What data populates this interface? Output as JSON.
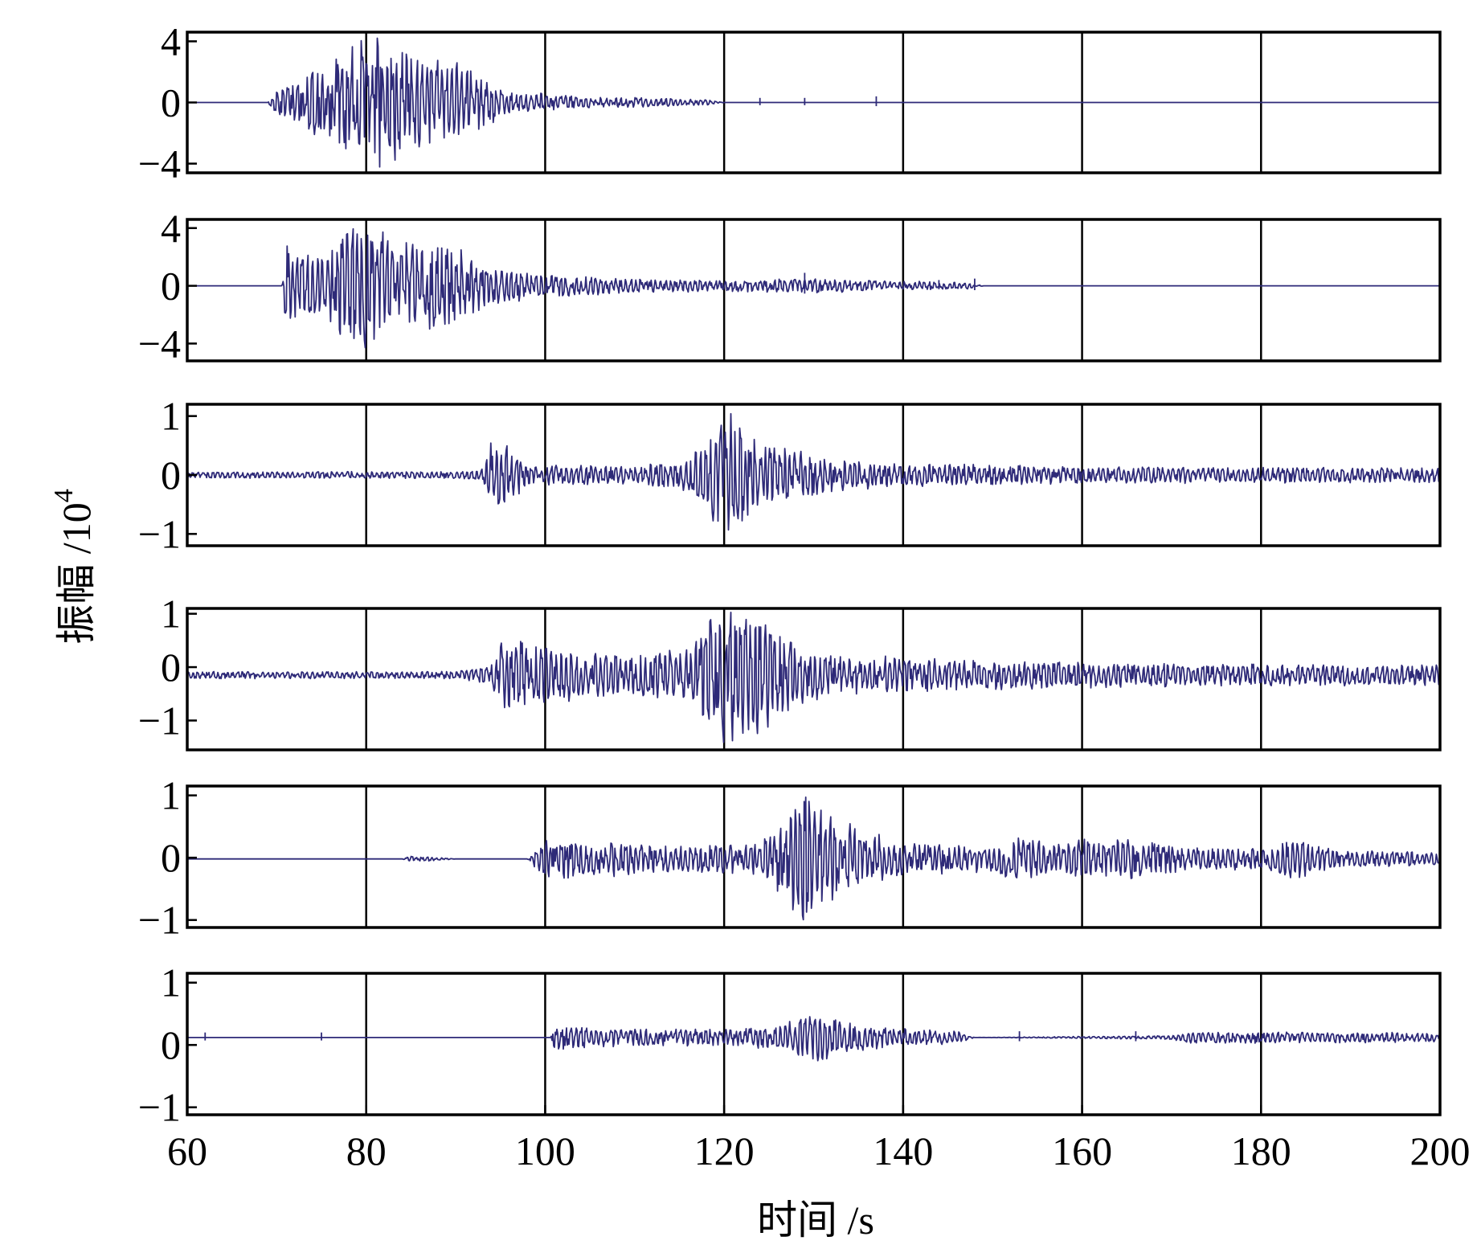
{
  "chart_data": {
    "type": "line",
    "layout": "stacked-subplots",
    "xlabel": "时间 /s",
    "ylabel": "振幅 /10",
    "ylabel_exponent": "4",
    "xlim": [
      60,
      200
    ],
    "xticks": [
      60,
      80,
      100,
      120,
      140,
      160,
      180,
      200
    ],
    "xtick_labels": [
      "60",
      "80",
      "100",
      "120",
      "140",
      "160",
      "180",
      "200"
    ],
    "grid_x": true,
    "line_color": "#2e2a78",
    "panels": [
      {
        "name": "trace-1",
        "ylim": [
          -4.6,
          4.6
        ],
        "yticks": [
          4,
          0,
          -4
        ],
        "ytick_labels": [
          "4",
          "0",
          "−4"
        ],
        "offset": 0,
        "envelope": [
          [
            60,
            0
          ],
          [
            69,
            0
          ],
          [
            70,
            1.0
          ],
          [
            74,
            2.2
          ],
          [
            78,
            3.8
          ],
          [
            80,
            4.6
          ],
          [
            82,
            4.4
          ],
          [
            86,
            3.2
          ],
          [
            90,
            2.8
          ],
          [
            93,
            1.6
          ],
          [
            96,
            0.9
          ],
          [
            100,
            0.6
          ],
          [
            104,
            0.4
          ],
          [
            108,
            0.35
          ],
          [
            112,
            0.3
          ],
          [
            118,
            0.2
          ],
          [
            120,
            0
          ],
          [
            200,
            0
          ]
        ],
        "spikes": [
          [
            124,
            0.3
          ],
          [
            129,
            0.3
          ],
          [
            137,
            0.4
          ]
        ]
      },
      {
        "name": "trace-2",
        "ylim": [
          -5.2,
          4.6
        ],
        "yticks": [
          4,
          0,
          -4
        ],
        "ytick_labels": [
          "4",
          "0",
          "−4"
        ],
        "offset": 0,
        "envelope": [
          [
            60,
            0
          ],
          [
            70.6,
            0
          ],
          [
            71,
            2.8
          ],
          [
            75,
            2.0
          ],
          [
            78,
            4.4
          ],
          [
            80,
            4.6
          ],
          [
            84,
            3.2
          ],
          [
            88,
            3.2
          ],
          [
            91,
            2.5
          ],
          [
            94,
            1.4
          ],
          [
            100,
            0.8
          ],
          [
            110,
            0.5
          ],
          [
            120,
            0.4
          ],
          [
            130,
            0.5
          ],
          [
            136,
            0.4
          ],
          [
            143,
            0.3
          ],
          [
            148,
            0.2
          ],
          [
            149,
            0
          ],
          [
            200,
            0
          ]
        ],
        "spikes": [
          [
            129,
            0.9
          ],
          [
            144,
            0.4
          ],
          [
            148,
            0.5
          ]
        ]
      },
      {
        "name": "trace-3",
        "ylim": [
          -1.2,
          1.2
        ],
        "yticks": [
          1,
          0,
          -1
        ],
        "ytick_labels": [
          "1",
          "0",
          "−1"
        ],
        "offset": 0,
        "envelope": [
          [
            60,
            0.06
          ],
          [
            90,
            0.06
          ],
          [
            93,
            0.1
          ],
          [
            94,
            0.6
          ],
          [
            96,
            0.5
          ],
          [
            98,
            0.18
          ],
          [
            110,
            0.15
          ],
          [
            115,
            0.25
          ],
          [
            118,
            0.6
          ],
          [
            120,
            1.1
          ],
          [
            122,
            1.0
          ],
          [
            124,
            0.55
          ],
          [
            128,
            0.45
          ],
          [
            132,
            0.3
          ],
          [
            140,
            0.2
          ],
          [
            160,
            0.15
          ],
          [
            200,
            0.13
          ]
        ],
        "spikes": []
      },
      {
        "name": "trace-4",
        "ylim": [
          -1.55,
          1.1
        ],
        "yticks": [
          1,
          0,
          -1
        ],
        "ytick_labels": [
          "1",
          "0",
          "−1"
        ],
        "offset": -0.15,
        "envelope": [
          [
            60,
            0.07
          ],
          [
            90,
            0.07
          ],
          [
            94,
            0.2
          ],
          [
            95,
            0.7
          ],
          [
            100,
            0.6
          ],
          [
            104,
            0.45
          ],
          [
            110,
            0.4
          ],
          [
            116,
            0.55
          ],
          [
            119,
            1.3
          ],
          [
            122,
            1.3
          ],
          [
            126,
            0.9
          ],
          [
            128,
            0.6
          ],
          [
            132,
            0.4
          ],
          [
            150,
            0.28
          ],
          [
            170,
            0.22
          ],
          [
            200,
            0.2
          ]
        ],
        "spikes": []
      },
      {
        "name": "trace-5",
        "ylim": [
          -1.12,
          1.15
        ],
        "yticks": [
          1,
          0,
          -1
        ],
        "ytick_labels": [
          "1",
          "0",
          "−1"
        ],
        "offset": -0.02,
        "envelope": [
          [
            60,
            0
          ],
          [
            84,
            0
          ],
          [
            85,
            0.06
          ],
          [
            90,
            0
          ],
          [
            98,
            0
          ],
          [
            100,
            0.35
          ],
          [
            104,
            0.32
          ],
          [
            115,
            0.22
          ],
          [
            124,
            0.25
          ],
          [
            127,
            0.75
          ],
          [
            129,
            1.05
          ],
          [
            132,
            0.7
          ],
          [
            136,
            0.45
          ],
          [
            140,
            0.28
          ],
          [
            150,
            0.22
          ],
          [
            153,
            0.45
          ],
          [
            156,
            0.25
          ],
          [
            160,
            0.35
          ],
          [
            166,
            0.35
          ],
          [
            172,
            0.2
          ],
          [
            180,
            0.18
          ],
          [
            184,
            0.35
          ],
          [
            188,
            0.15
          ],
          [
            200,
            0.1
          ]
        ],
        "spikes": []
      },
      {
        "name": "trace-6",
        "ylim": [
          -1.12,
          1.15
        ],
        "yticks": [
          1,
          0,
          -1
        ],
        "ytick_labels": [
          "1",
          "0",
          "−1"
        ],
        "offset": 0.12,
        "envelope": [
          [
            60,
            0
          ],
          [
            100.6,
            0
          ],
          [
            101,
            0.22
          ],
          [
            106,
            0.15
          ],
          [
            120,
            0.13
          ],
          [
            126,
            0.2
          ],
          [
            130,
            0.4
          ],
          [
            134,
            0.25
          ],
          [
            140,
            0.15
          ],
          [
            146,
            0.1
          ],
          [
            148,
            0
          ],
          [
            170,
            0.03
          ],
          [
            172,
            0.1
          ],
          [
            200,
            0.08
          ]
        ],
        "spikes": [
          [
            62,
            0.08
          ],
          [
            75,
            0.08
          ],
          [
            153,
            0.1
          ],
          [
            166,
            0.1
          ]
        ]
      }
    ]
  }
}
